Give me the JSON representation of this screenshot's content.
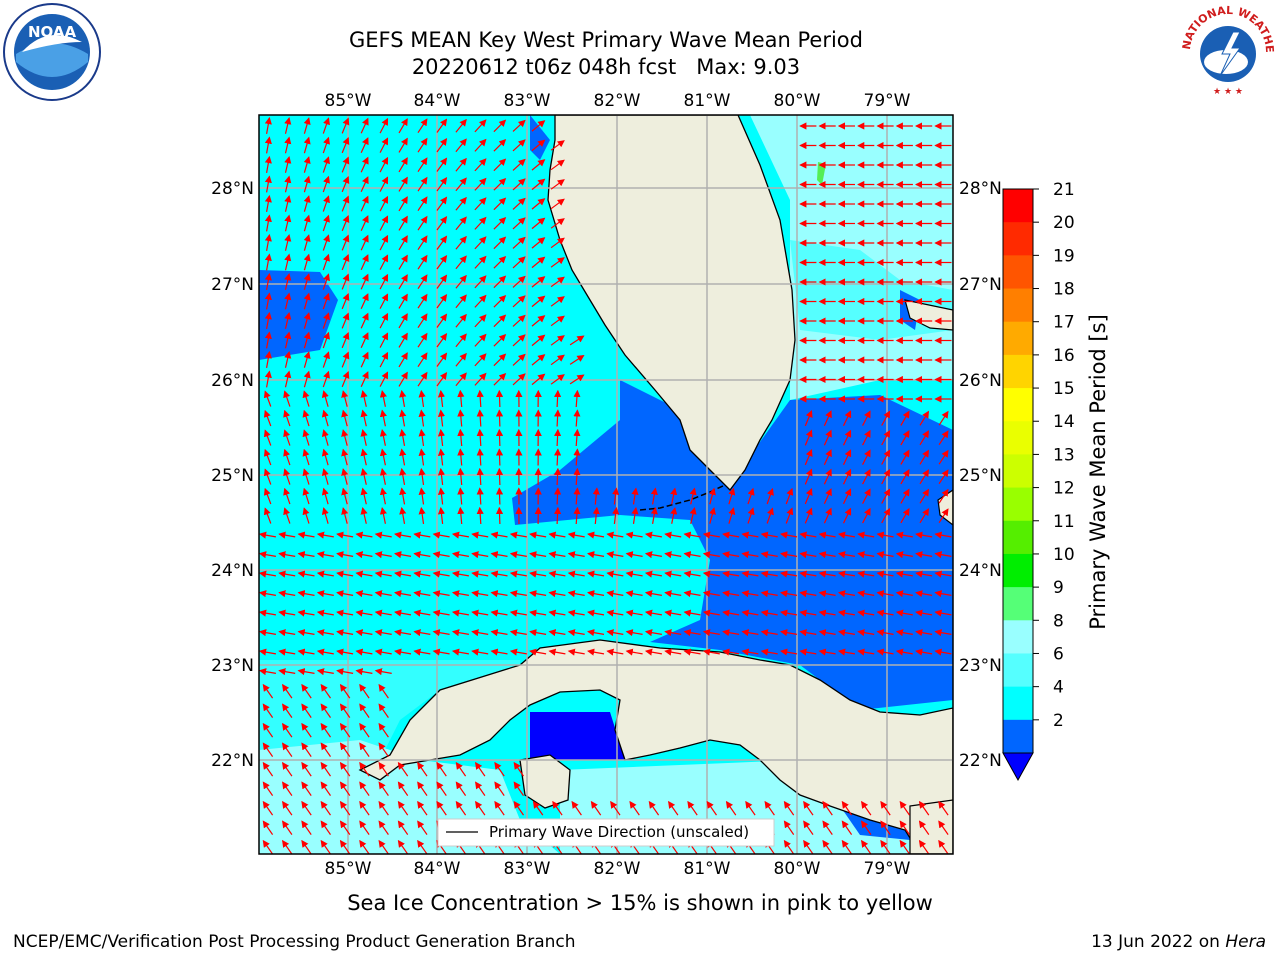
{
  "header": {
    "title_line1": "GEFS MEAN Key West Primary Wave Mean Period",
    "title_line2": "20220612 t06z 048h fcst   Max: 9.03"
  },
  "map": {
    "lon_labels": [
      "85°W",
      "84°W",
      "83°W",
      "82°W",
      "81°W",
      "80°W",
      "79°W"
    ],
    "lat_labels": [
      "28°N",
      "27°N",
      "26°N",
      "25°N",
      "24°N",
      "23°N",
      "22°N"
    ],
    "legend_label": "Primary Wave Direction (unscaled)",
    "colors": {
      "ocean_light": "#00ffff",
      "ocean_pale": "#99ffff",
      "ocean_mid": "#33ffff",
      "ocean_blue": "#0066ff",
      "ocean_deep": "#0000ff",
      "land": "#eeeedd",
      "arrow": "#ff0000"
    }
  },
  "colorbar": {
    "label": "Primary Wave Mean Period [s]",
    "ticks": [
      "21",
      "20",
      "19",
      "18",
      "17",
      "16",
      "15",
      "14",
      "13",
      "12",
      "11",
      "10",
      "9",
      "8",
      "6",
      "4",
      "2"
    ],
    "bands": [
      "#ff0000",
      "#ff2a00",
      "#ff5500",
      "#ff7f00",
      "#ffaa00",
      "#ffd400",
      "#ffff00",
      "#eaff00",
      "#ccff00",
      "#99ff00",
      "#55ee00",
      "#00ee00",
      "#55ff77",
      "#99ffff",
      "#55ffff",
      "#00ffff",
      "#0066ff"
    ],
    "underflow_color": "#0000ff"
  },
  "footer": {
    "caption": "Sea Ice Concentration > 15% is shown in pink to yellow",
    "credit_left": "NCEP/EMC/Verification Post Processing Product Generation Branch",
    "credit_date": "13 Jun 2022 on ",
    "credit_host": "Hera"
  },
  "logos": {
    "noaa_text": "NOAA",
    "nws_text": "NATIONAL WEATHER SERVICE"
  }
}
